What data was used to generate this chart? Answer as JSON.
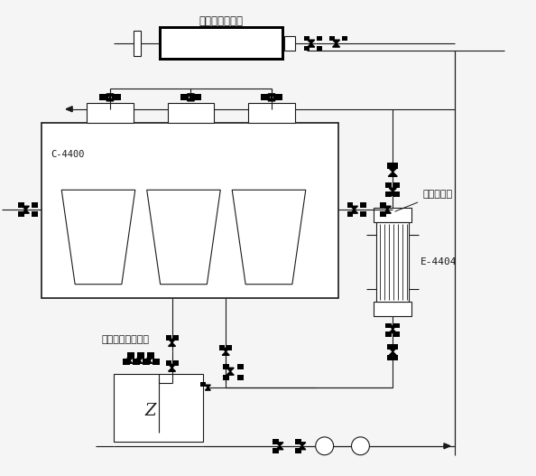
{
  "bg_color": "#f5f5f5",
  "line_color": "#1a1a1a",
  "title_filter": "二氧化硅过滤机",
  "title_cooler": "循环冷却器",
  "label_c4400": "C-4400",
  "label_e4404": "E-4404",
  "title_crystallizer": "二氧化硅结晶系统",
  "figsize": [
    5.94,
    5.27
  ],
  "dpi": 100
}
